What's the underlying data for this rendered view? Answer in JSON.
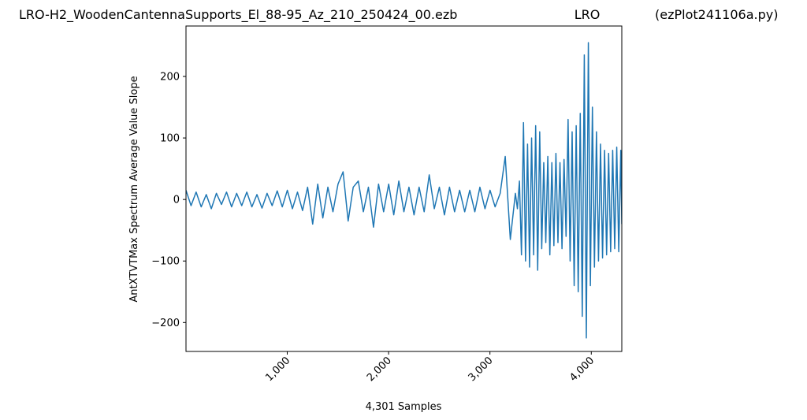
{
  "chart_data": {
    "type": "line",
    "title": [
      "LRO-H2_WoodenCantennaSupports_El_88-95_Az_210_250424_00.ezb",
      "LRO",
      "(ezPlot241106a.py)"
    ],
    "xlabel": "4,301 Samples",
    "ylabel": "AntXTVTMax Spectrum Average Value Slope",
    "color": "#1f77b4",
    "xlim": [
      1,
      4301
    ],
    "ylim": [
      -247,
      282
    ],
    "xticks": [
      {
        "value": 1000,
        "label": "1,000"
      },
      {
        "value": 2000,
        "label": "2,000"
      },
      {
        "value": 3000,
        "label": "3,000"
      },
      {
        "value": 4000,
        "label": "4,000"
      }
    ],
    "yticks": [
      {
        "value": -200,
        "label": "−200"
      },
      {
        "value": -100,
        "label": "−100"
      },
      0,
      100,
      200
    ],
    "x": [
      1,
      51,
      101,
      151,
      201,
      251,
      301,
      351,
      401,
      451,
      501,
      551,
      601,
      651,
      701,
      751,
      801,
      851,
      901,
      951,
      1001,
      1051,
      1101,
      1151,
      1201,
      1251,
      1301,
      1351,
      1401,
      1451,
      1501,
      1551,
      1601,
      1651,
      1701,
      1751,
      1801,
      1851,
      1901,
      1951,
      2001,
      2051,
      2101,
      2151,
      2201,
      2251,
      2301,
      2351,
      2401,
      2451,
      2501,
      2551,
      2601,
      2651,
      2701,
      2751,
      2801,
      2851,
      2901,
      2951,
      3001,
      3051,
      3101,
      3151,
      3201,
      3251,
      3271,
      3291,
      3311,
      3331,
      3351,
      3371,
      3391,
      3411,
      3431,
      3451,
      3471,
      3491,
      3511,
      3531,
      3551,
      3571,
      3591,
      3611,
      3631,
      3651,
      3671,
      3691,
      3711,
      3731,
      3751,
      3771,
      3791,
      3811,
      3831,
      3851,
      3871,
      3891,
      3911,
      3931,
      3951,
      3971,
      3991,
      4011,
      4031,
      4051,
      4071,
      4091,
      4111,
      4131,
      4151,
      4171,
      4191,
      4211,
      4231,
      4251,
      4271,
      4291,
      4301
    ],
    "values": [
      15,
      -10,
      12,
      -12,
      8,
      -15,
      10,
      -8,
      12,
      -12,
      10,
      -10,
      12,
      -12,
      8,
      -14,
      10,
      -10,
      14,
      -12,
      15,
      -15,
      12,
      -18,
      20,
      -40,
      25,
      -30,
      20,
      -20,
      25,
      45,
      -35,
      20,
      30,
      -20,
      20,
      -45,
      25,
      -20,
      25,
      -25,
      30,
      -20,
      20,
      -25,
      20,
      -20,
      40,
      -15,
      20,
      -25,
      20,
      -20,
      15,
      -20,
      15,
      -20,
      20,
      -15,
      15,
      -12,
      10,
      70,
      -65,
      10,
      -15,
      30,
      -90,
      125,
      -100,
      90,
      -110,
      100,
      -90,
      120,
      -115,
      110,
      -80,
      60,
      -70,
      70,
      -90,
      60,
      -75,
      75,
      -70,
      60,
      -80,
      65,
      -60,
      130,
      -100,
      110,
      -140,
      120,
      -150,
      140,
      -190,
      235,
      -225,
      255,
      -140,
      150,
      -110,
      110,
      -100,
      90,
      -95,
      80,
      -90,
      75,
      -85,
      80,
      -80,
      85,
      -85,
      80,
      -40
    ]
  }
}
